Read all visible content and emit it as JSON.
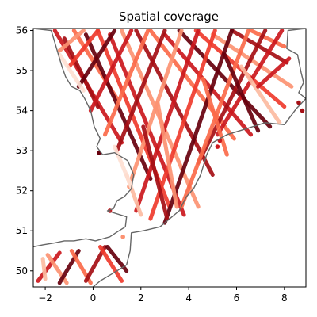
{
  "chart_data": {
    "type": "scatter",
    "title": "Spatial coverage",
    "xlabel": "",
    "ylabel": "",
    "xlim": [
      -2.5,
      8.9
    ],
    "ylim": [
      49.6,
      56.05
    ],
    "xticks": [
      -2,
      0,
      2,
      4,
      6,
      8
    ],
    "yticks": [
      50,
      51,
      52,
      53,
      54,
      55,
      56
    ],
    "grid": false,
    "colormap": "Reds",
    "colors": [
      "#fee0d2",
      "#fcbba1",
      "#fc9272",
      "#fb6a4a",
      "#ef3b2c",
      "#cb181d",
      "#a50f15",
      "#67000d"
    ],
    "coastline_color": "#666666",
    "coastline": [
      [
        -2.5,
        56.05
      ],
      [
        -1.75,
        56.0
      ],
      [
        -1.6,
        55.7
      ],
      [
        -1.45,
        55.4
      ],
      [
        -1.3,
        55.1
      ],
      [
        -1.15,
        54.85
      ],
      [
        -0.9,
        54.6
      ],
      [
        -0.55,
        54.5
      ],
      [
        -0.35,
        54.3
      ],
      [
        -0.1,
        54.0
      ],
      [
        0.05,
        53.6
      ],
      [
        0.3,
        53.3
      ],
      [
        0.15,
        53.1
      ],
      [
        0.4,
        52.9
      ],
      [
        0.9,
        52.95
      ],
      [
        1.45,
        52.75
      ],
      [
        1.7,
        52.4
      ],
      [
        1.6,
        52.05
      ],
      [
        1.3,
        51.85
      ],
      [
        1.0,
        51.75
      ],
      [
        0.85,
        51.55
      ],
      [
        0.6,
        51.5
      ],
      [
        1.4,
        51.35
      ],
      [
        1.35,
        51.1
      ],
      [
        0.95,
        50.95
      ],
      [
        0.7,
        50.85
      ],
      [
        0.1,
        50.75
      ],
      [
        -0.3,
        50.8
      ],
      [
        -0.8,
        50.75
      ],
      [
        -1.2,
        50.75
      ],
      [
        -1.6,
        50.7
      ],
      [
        -2.1,
        50.65
      ],
      [
        -2.5,
        50.6
      ]
    ],
    "coastline_east": [
      [
        8.9,
        56.05
      ],
      [
        8.15,
        56.0
      ],
      [
        8.1,
        55.55
      ],
      [
        8.55,
        55.4
      ],
      [
        8.7,
        54.95
      ],
      [
        8.8,
        54.7
      ],
      [
        8.6,
        54.45
      ],
      [
        8.9,
        54.3
      ],
      [
        8.5,
        54.05
      ],
      [
        8.0,
        53.65
      ],
      [
        7.2,
        53.7
      ],
      [
        6.4,
        53.55
      ],
      [
        5.6,
        53.4
      ],
      [
        5.0,
        53.2
      ],
      [
        4.75,
        52.9
      ],
      [
        4.5,
        52.4
      ],
      [
        4.2,
        52.05
      ],
      [
        3.9,
        51.85
      ],
      [
        3.6,
        51.5
      ],
      [
        2.8,
        51.1
      ],
      [
        2.1,
        51.0
      ],
      [
        1.6,
        50.95
      ],
      [
        1.55,
        50.5
      ],
      [
        1.4,
        50.15
      ],
      [
        1.0,
        50.0
      ],
      [
        0.3,
        49.75
      ],
      [
        0.0,
        49.6
      ]
    ],
    "tracks": [
      {
        "x": [
          -2.3,
          -1.4
        ],
        "y": [
          49.75,
          50.45
        ],
        "c": 5
      },
      {
        "x": [
          -1.9,
          -1.1
        ],
        "y": [
          50.4,
          49.7
        ],
        "c": 2
      },
      {
        "x": [
          -1.4,
          -0.6
        ],
        "y": [
          49.7,
          50.5
        ],
        "c": 7
      },
      {
        "x": [
          -0.9,
          -0.1
        ],
        "y": [
          50.5,
          49.7
        ],
        "c": 3
      },
      {
        "x": [
          -0.3,
          0.5
        ],
        "y": [
          49.75,
          50.6
        ],
        "c": 6
      },
      {
        "x": [
          0.3,
          1.2
        ],
        "y": [
          50.6,
          49.75
        ],
        "c": 4
      },
      {
        "x": [
          0.6,
          1.4
        ],
        "y": [
          50.6,
          50.0
        ],
        "c": 7
      },
      {
        "x": [
          -2.1,
          -2.0
        ],
        "y": [
          50.3,
          49.8
        ],
        "c": 1
      },
      {
        "x": [
          -1.6,
          1.2
        ],
        "y": [
          56.0,
          53.2
        ],
        "c": 5
      },
      {
        "x": [
          -1.2,
          0.2
        ],
        "y": [
          55.8,
          54.1
        ],
        "c": 6
      },
      {
        "x": [
          -0.8,
          1.0
        ],
        "y": [
          56.0,
          54.3
        ],
        "c": 3
      },
      {
        "x": [
          -0.3,
          2.4
        ],
        "y": [
          55.9,
          52.3
        ],
        "c": 7
      },
      {
        "x": [
          0.2,
          3.2
        ],
        "y": [
          56.0,
          51.6
        ],
        "c": 4
      },
      {
        "x": [
          0.7,
          3.8
        ],
        "y": [
          55.9,
          51.4
        ],
        "c": 5
      },
      {
        "x": [
          1.2,
          4.4
        ],
        "y": [
          56.0,
          51.6
        ],
        "c": 2
      },
      {
        "x": [
          1.8,
          5.0
        ],
        "y": [
          56.0,
          52.4
        ],
        "c": 6
      },
      {
        "x": [
          2.4,
          5.9
        ],
        "y": [
          56.0,
          53.3
        ],
        "c": 3
      },
      {
        "x": [
          3.0,
          6.6
        ],
        "y": [
          55.9,
          53.4
        ],
        "c": 5
      },
      {
        "x": [
          3.6,
          7.4
        ],
        "y": [
          56.0,
          53.6
        ],
        "c": 7
      },
      {
        "x": [
          4.3,
          8.0
        ],
        "y": [
          56.0,
          54.1
        ],
        "c": 4
      },
      {
        "x": [
          5.0,
          8.3
        ],
        "y": [
          55.9,
          54.6
        ],
        "c": 2
      },
      {
        "x": [
          5.8,
          8.1
        ],
        "y": [
          56.0,
          55.2
        ],
        "c": 6
      },
      {
        "x": [
          6.6,
          8.0
        ],
        "y": [
          56.0,
          55.6
        ],
        "c": 3
      },
      {
        "x": [
          7.9,
          5.2
        ],
        "y": [
          56.0,
          53.4
        ],
        "c": 5
      },
      {
        "x": [
          7.2,
          4.4
        ],
        "y": [
          56.0,
          52.7
        ],
        "c": 6
      },
      {
        "x": [
          6.5,
          3.7
        ],
        "y": [
          56.0,
          51.6
        ],
        "c": 3
      },
      {
        "x": [
          5.8,
          3.0
        ],
        "y": [
          56.0,
          51.2
        ],
        "c": 7
      },
      {
        "x": [
          5.1,
          2.4
        ],
        "y": [
          56.0,
          51.3
        ],
        "c": 4
      },
      {
        "x": [
          4.4,
          1.8
        ],
        "y": [
          56.0,
          51.5
        ],
        "c": 5
      },
      {
        "x": [
          3.7,
          1.5
        ],
        "y": [
          56.0,
          52.1
        ],
        "c": 2
      },
      {
        "x": [
          3.0,
          1.0
        ],
        "y": [
          56.0,
          53.0
        ],
        "c": 6
      },
      {
        "x": [
          2.3,
          0.5
        ],
        "y": [
          56.0,
          53.4
        ],
        "c": 3
      },
      {
        "x": [
          1.6,
          -0.1
        ],
        "y": [
          56.0,
          54.0
        ],
        "c": 5
      },
      {
        "x": [
          0.9,
          -0.6
        ],
        "y": [
          56.0,
          54.6
        ],
        "c": 7
      },
      {
        "x": [
          0.2,
          -1.0
        ],
        "y": [
          56.0,
          55.1
        ],
        "c": 4
      },
      {
        "x": [
          -0.4,
          -1.4
        ],
        "y": [
          56.0,
          55.5
        ],
        "c": 2
      },
      {
        "x": [
          2.1,
          3.1
        ],
        "y": [
          53.6,
          51.3
        ],
        "c": 6
      },
      {
        "x": [
          2.7,
          3.5
        ],
        "y": [
          54.2,
          51.6
        ],
        "c": 2
      },
      {
        "x": [
          4.6,
          5.6
        ],
        "y": [
          54.8,
          52.9
        ],
        "c": 3
      },
      {
        "x": [
          5.5,
          6.9
        ],
        "y": [
          55.4,
          53.5
        ],
        "c": 7
      },
      {
        "x": [
          6.2,
          7.8
        ],
        "y": [
          55.1,
          53.7
        ],
        "c": 1
      },
      {
        "x": [
          1.4,
          2.0
        ],
        "y": [
          52.4,
          51.4
        ],
        "c": 1
      },
      {
        "x": [
          0.9,
          1.6
        ],
        "y": [
          53.1,
          52.1
        ],
        "c": 0
      },
      {
        "x": [
          6.9,
          8.2
        ],
        "y": [
          54.6,
          55.3
        ],
        "c": 5
      },
      {
        "x": [
          -1.4,
          -0.4
        ],
        "y": [
          55.4,
          54.5
        ],
        "c": 0
      }
    ],
    "dots": [
      {
        "x": 0.25,
        "y": 52.95,
        "c": 7
      },
      {
        "x": 5.3,
        "y": 53.25,
        "c": 5
      },
      {
        "x": 5.2,
        "y": 53.1,
        "c": 5
      },
      {
        "x": 8.75,
        "y": 54.0,
        "c": 6
      },
      {
        "x": 8.6,
        "y": 54.2,
        "c": 6
      },
      {
        "x": 0.7,
        "y": 51.5,
        "c": 5
      },
      {
        "x": 1.25,
        "y": 50.85,
        "c": 2
      }
    ]
  }
}
